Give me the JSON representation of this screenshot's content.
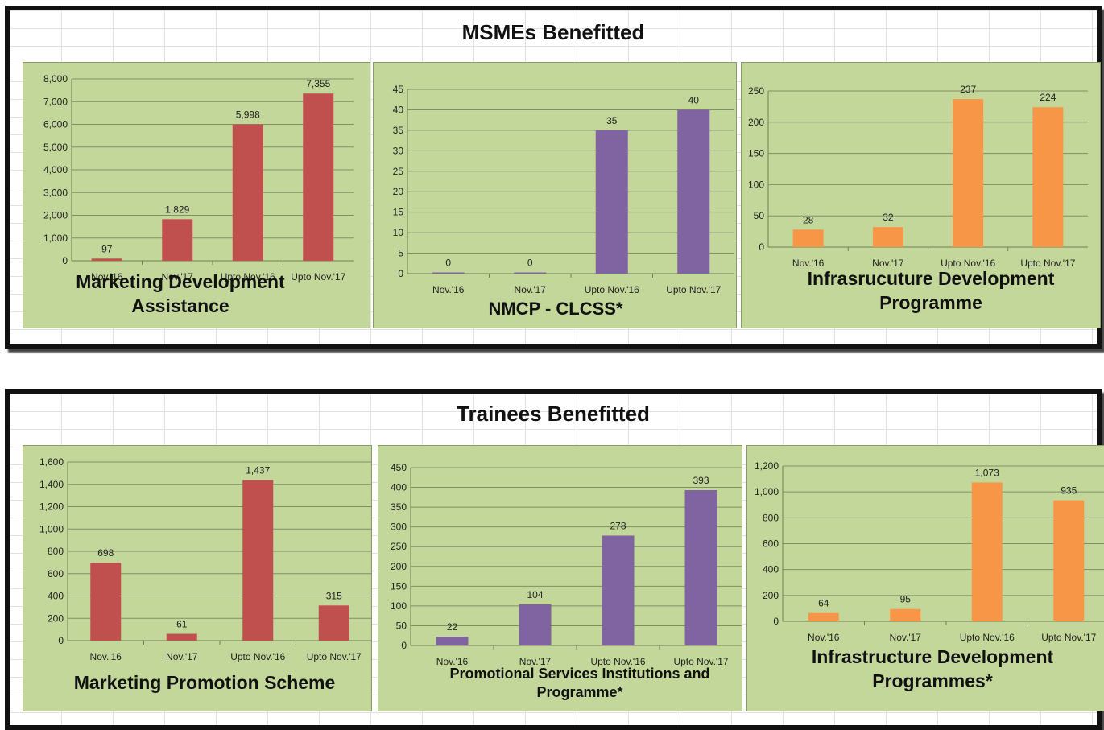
{
  "sections": [
    {
      "title": "MSMEs Benefitted"
    },
    {
      "title": "Trainees Benefitted"
    }
  ],
  "chart_data": [
    {
      "type": "bar",
      "title_lines": [
        "Marketing Development",
        "Assistance"
      ],
      "categories": [
        "Nov.'16",
        "Nov.'17",
        "Upto Nov.'16",
        "Upto Nov.'17"
      ],
      "values": [
        97,
        1829,
        5998,
        7355
      ],
      "ylim": [
        0,
        8000
      ],
      "ystep": 1000,
      "color": "#c0504d",
      "comma": true
    },
    {
      "type": "bar",
      "title_lines": [
        "NMCP - CLCSS*"
      ],
      "categories": [
        "Nov.'16",
        "Nov.'17",
        "Upto Nov.'16",
        "Upto Nov.'17"
      ],
      "values": [
        0,
        0,
        35,
        40
      ],
      "ylim": [
        0,
        45
      ],
      "ystep": 5,
      "color": "#8064a2",
      "comma": false
    },
    {
      "type": "bar",
      "title_lines": [
        "Infrasrucuture Development",
        "Programme"
      ],
      "categories": [
        "Nov.'16",
        "Nov.'17",
        "Upto Nov.'16",
        "Upto Nov.'17"
      ],
      "values": [
        28,
        32,
        237,
        224
      ],
      "ylim": [
        0,
        250
      ],
      "ystep": 50,
      "color": "#f79646",
      "comma": false
    },
    {
      "type": "bar",
      "title_lines": [
        "Marketing Promotion Scheme"
      ],
      "categories": [
        "Nov.'16",
        "Nov.'17",
        "Upto Nov.'16",
        "Upto Nov.'17"
      ],
      "values": [
        698,
        61,
        1437,
        315
      ],
      "ylim": [
        0,
        1600
      ],
      "ystep": 200,
      "color": "#c0504d",
      "comma": true
    },
    {
      "type": "bar",
      "title_lines": [
        "Promotional Services Institutions and",
        "Programme*"
      ],
      "categories": [
        "Nov.'16",
        "Nov.'17",
        "Upto Nov.'16",
        "Upto Nov.'17"
      ],
      "values": [
        22,
        104,
        278,
        393
      ],
      "ylim": [
        0,
        450
      ],
      "ystep": 50,
      "color": "#8064a2",
      "comma": false
    },
    {
      "type": "bar",
      "title_lines": [
        "Infrastructure Development",
        "Programmes*"
      ],
      "categories": [
        "Nov.'16",
        "Nov.'17",
        "Upto Nov.'16",
        "Upto Nov.'17"
      ],
      "values": [
        64,
        95,
        1073,
        935
      ],
      "ylim": [
        0,
        1200
      ],
      "ystep": 200,
      "color": "#f79646",
      "comma": true
    }
  ]
}
